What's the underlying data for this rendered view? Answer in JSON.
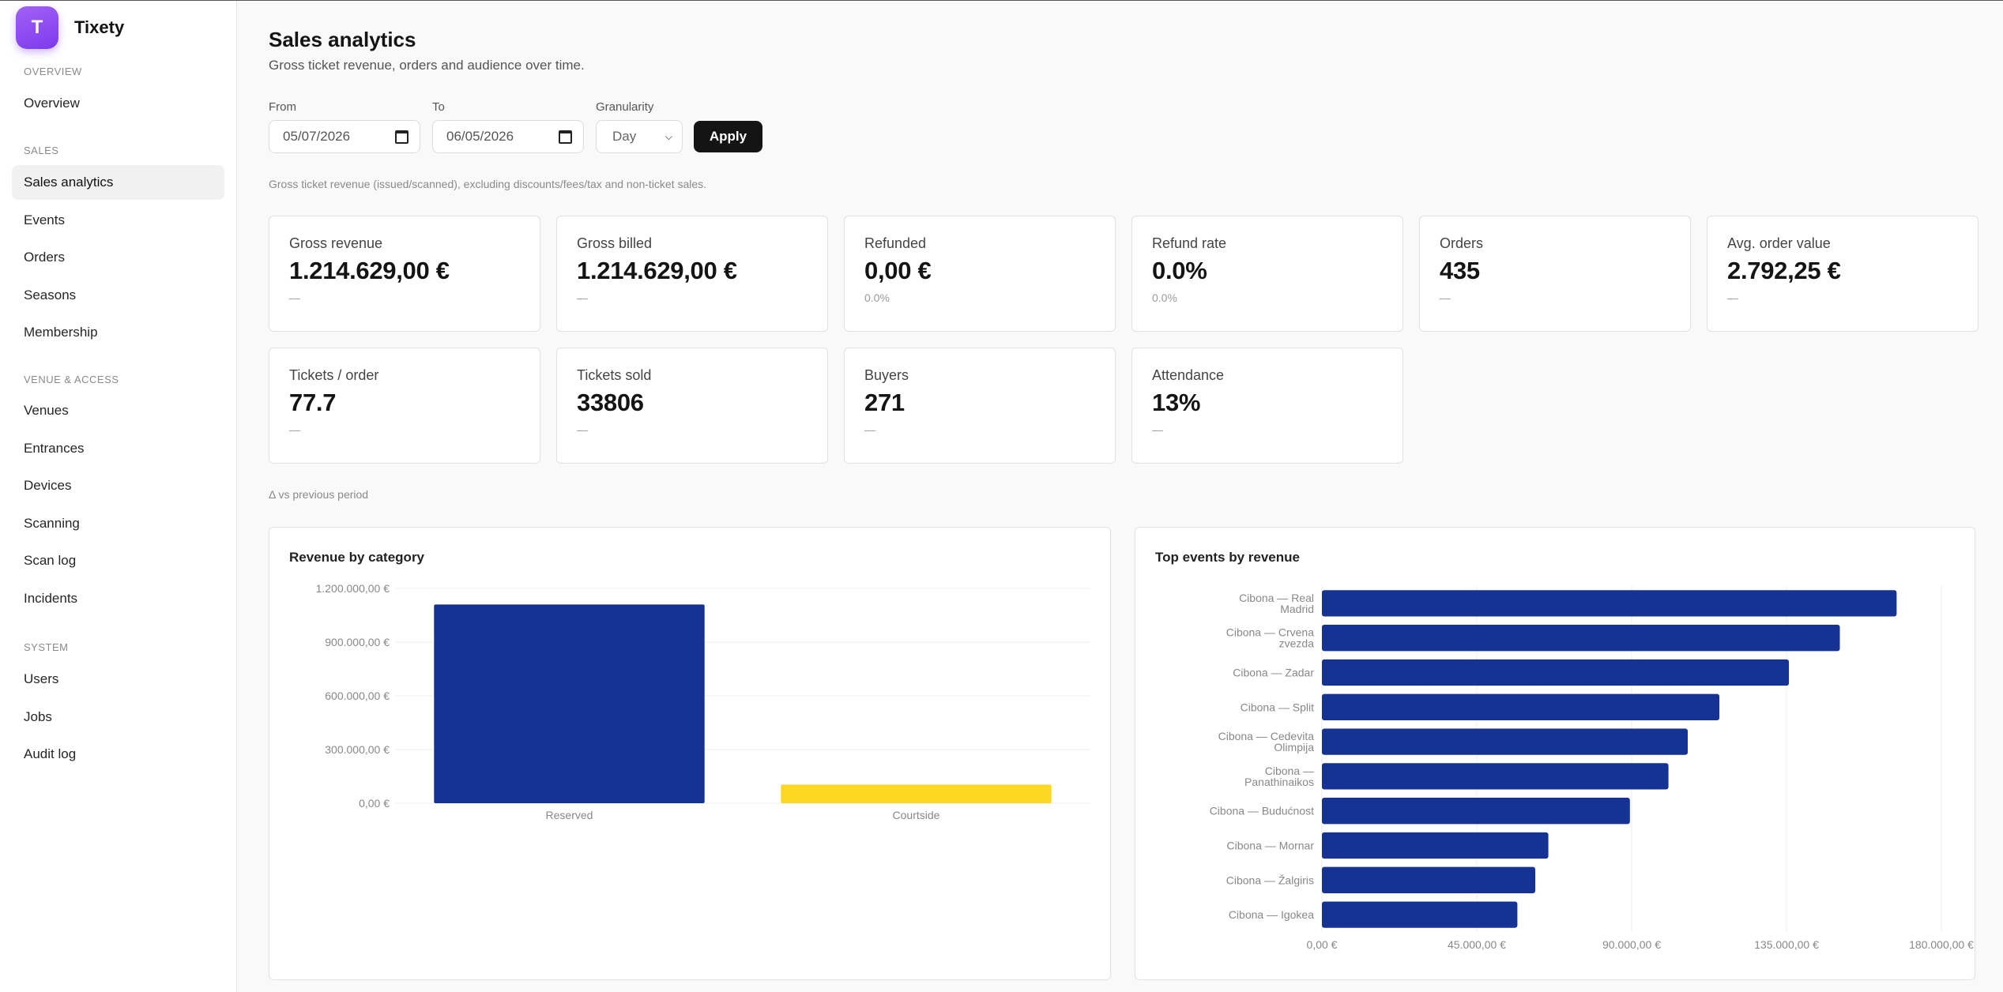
{
  "app": {
    "name": "Tixety",
    "logo_text": "T"
  },
  "sidebar": {
    "sections": [
      {
        "title": "OVERVIEW",
        "items": [
          {
            "label": "Overview",
            "active": false
          }
        ]
      },
      {
        "title": "SALES",
        "items": [
          {
            "label": "Sales analytics",
            "active": true
          },
          {
            "label": "Events",
            "active": false
          },
          {
            "label": "Orders",
            "active": false
          },
          {
            "label": "Seasons",
            "active": false
          },
          {
            "label": "Membership",
            "active": false
          }
        ]
      },
      {
        "title": "VENUE & ACCESS",
        "items": [
          {
            "label": "Venues",
            "active": false
          },
          {
            "label": "Entrances",
            "active": false
          },
          {
            "label": "Devices",
            "active": false
          },
          {
            "label": "Scanning",
            "active": false
          },
          {
            "label": "Scan log",
            "active": false
          },
          {
            "label": "Incidents",
            "active": false
          }
        ]
      },
      {
        "title": "SYSTEM",
        "items": [
          {
            "label": "Users",
            "active": false
          },
          {
            "label": "Jobs",
            "active": false
          },
          {
            "label": "Audit log",
            "active": false
          }
        ]
      }
    ]
  },
  "page": {
    "title": "Sales analytics",
    "subtitle": "Gross ticket revenue, orders and audience over time.",
    "note": "Gross ticket revenue (issued/scanned), excluding discounts/fees/tax and non-ticket sales.",
    "delta_note": "Δ vs previous period"
  },
  "filters": {
    "from_label": "From",
    "from_value": "05/07/2026",
    "to_label": "To",
    "to_value": "06/05/2026",
    "granularity_label": "Granularity",
    "granularity_value": "Day",
    "apply_label": "Apply"
  },
  "kpis": [
    {
      "label": "Gross revenue",
      "value": "1.214.629,00 €",
      "sub": "—"
    },
    {
      "label": "Gross billed",
      "value": "1.214.629,00 €",
      "sub": "—"
    },
    {
      "label": "Refunded",
      "value": "0,00 €",
      "sub": "0.0%"
    },
    {
      "label": "Refund rate",
      "value": "0.0%",
      "sub": "0.0%"
    },
    {
      "label": "Orders",
      "value": "435",
      "sub": "—"
    },
    {
      "label": "Avg. order value",
      "value": "2.792,25 €",
      "sub": "—"
    },
    {
      "label": "Tickets / order",
      "value": "77.7",
      "sub": "—"
    },
    {
      "label": "Tickets sold",
      "value": "33806",
      "sub": "—"
    },
    {
      "label": "Buyers",
      "value": "271",
      "sub": "—"
    },
    {
      "label": "Attendance",
      "value": "13%",
      "sub": "—"
    }
  ],
  "chart_data": [
    {
      "type": "bar",
      "title": "Revenue by category",
      "categories": [
        "Reserved",
        "Courtside"
      ],
      "values": [
        1110000,
        104000
      ],
      "colors": [
        "#163293",
        "#fcd822"
      ],
      "ylim": [
        0,
        1200000
      ],
      "yticks": [
        0,
        300000,
        600000,
        900000,
        1200000
      ],
      "ytick_labels": [
        "0,00 €",
        "300.000,00 €",
        "600.000,00 €",
        "900.000,00 €",
        "1.200.000,00 €"
      ],
      "grid": true
    },
    {
      "type": "bar",
      "orientation": "horizontal",
      "title": "Top events by revenue",
      "categories": [
        "Cibona — Real Madrid",
        "Cibona — Crvena zvezda",
        "Cibona — Zadar",
        "Cibona — Split",
        "Cibona — Cedevita Olimpija",
        "Cibona — Panathinaikos",
        "Cibona — Budućnost",
        "Cibona — Mornar",
        "Cibona — Žalgiris",
        "Cibona — Igokea"
      ],
      "category_lines": [
        [
          "Cibona — Real",
          "Madrid"
        ],
        [
          "Cibona — Crvena",
          "zvezda"
        ],
        [
          "Cibona — Zadar"
        ],
        [
          "Cibona — Split"
        ],
        [
          "Cibona — Cedevita",
          "Olimpija"
        ],
        [
          "Cibona —",
          "Panathinaikos"
        ],
        [
          "Cibona — Budućnost"
        ],
        [
          "Cibona — Mornar"
        ],
        [
          "Cibona — Žalgiris"
        ],
        [
          "Cibona — Igokea"
        ]
      ],
      "values": [
        167000,
        150500,
        135700,
        115500,
        106300,
        100700,
        89500,
        65800,
        62000,
        56800
      ],
      "color": "#163293",
      "xlim": [
        0,
        180000
      ],
      "xticks": [
        0,
        45000,
        90000,
        135000,
        180000
      ],
      "xtick_labels": [
        "0,00 €",
        "45.000,00 €",
        "90.000,00 €",
        "135.000,00 €",
        "180.000,00 €"
      ],
      "grid": true
    }
  ]
}
